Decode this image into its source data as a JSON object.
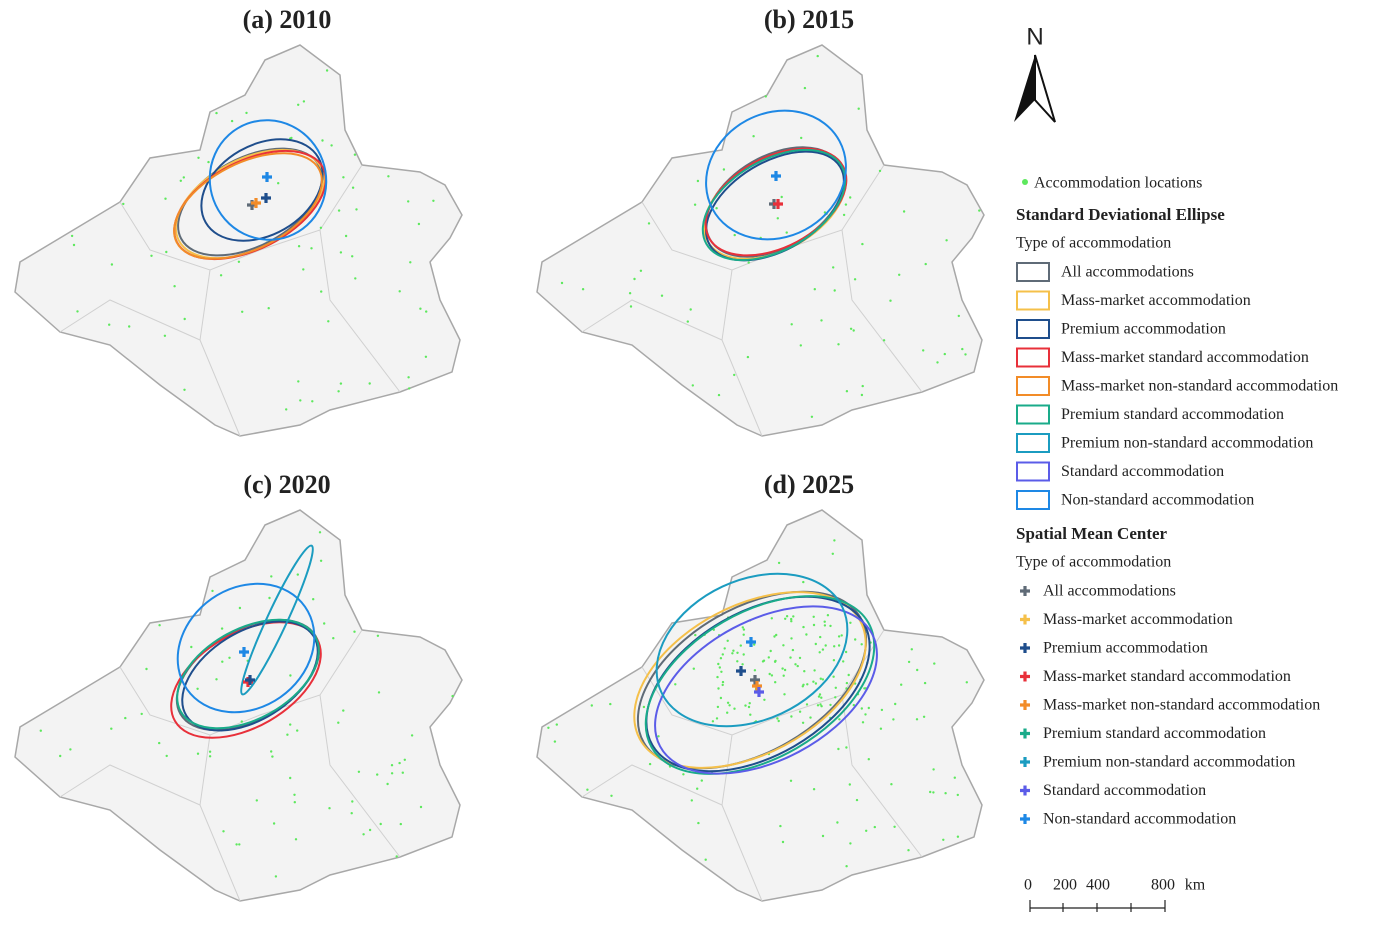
{
  "panels": [
    {
      "title": "(a) 2010"
    },
    {
      "title": "(b) 2015"
    },
    {
      "title": "(c) 2020"
    },
    {
      "title": "(d) 2025"
    }
  ],
  "legend": {
    "north": "N",
    "points": "Accommodation locations",
    "ellipse_heading": "Standard Deviational Ellipse",
    "ellipse_subheading": "Type of accommodation",
    "center_heading": "Spatial Mean Center",
    "center_subheading": "Type of accommodation",
    "types": [
      {
        "name": "All accommodations",
        "color": "#5f6b77"
      },
      {
        "name": "Mass-market accommodation",
        "color": "#f5c04a"
      },
      {
        "name": "Premium accommodation",
        "color": "#1f4e8c"
      },
      {
        "name": "Mass-market standard accommodation",
        "color": "#e8303a"
      },
      {
        "name": "Mass-market non-standard accommodation",
        "color": "#f28c28"
      },
      {
        "name": "Premium standard accommodation",
        "color": "#1aab8a"
      },
      {
        "name": "Premium non-standard accommodation",
        "color": "#1b9cc0"
      },
      {
        "name": "Standard accommodation",
        "color": "#5b5ce8"
      },
      {
        "name": "Non-standard accommodation",
        "color": "#1e88e5"
      }
    ],
    "scale": [
      "0",
      "200",
      "400",
      "800",
      "km"
    ]
  }
}
